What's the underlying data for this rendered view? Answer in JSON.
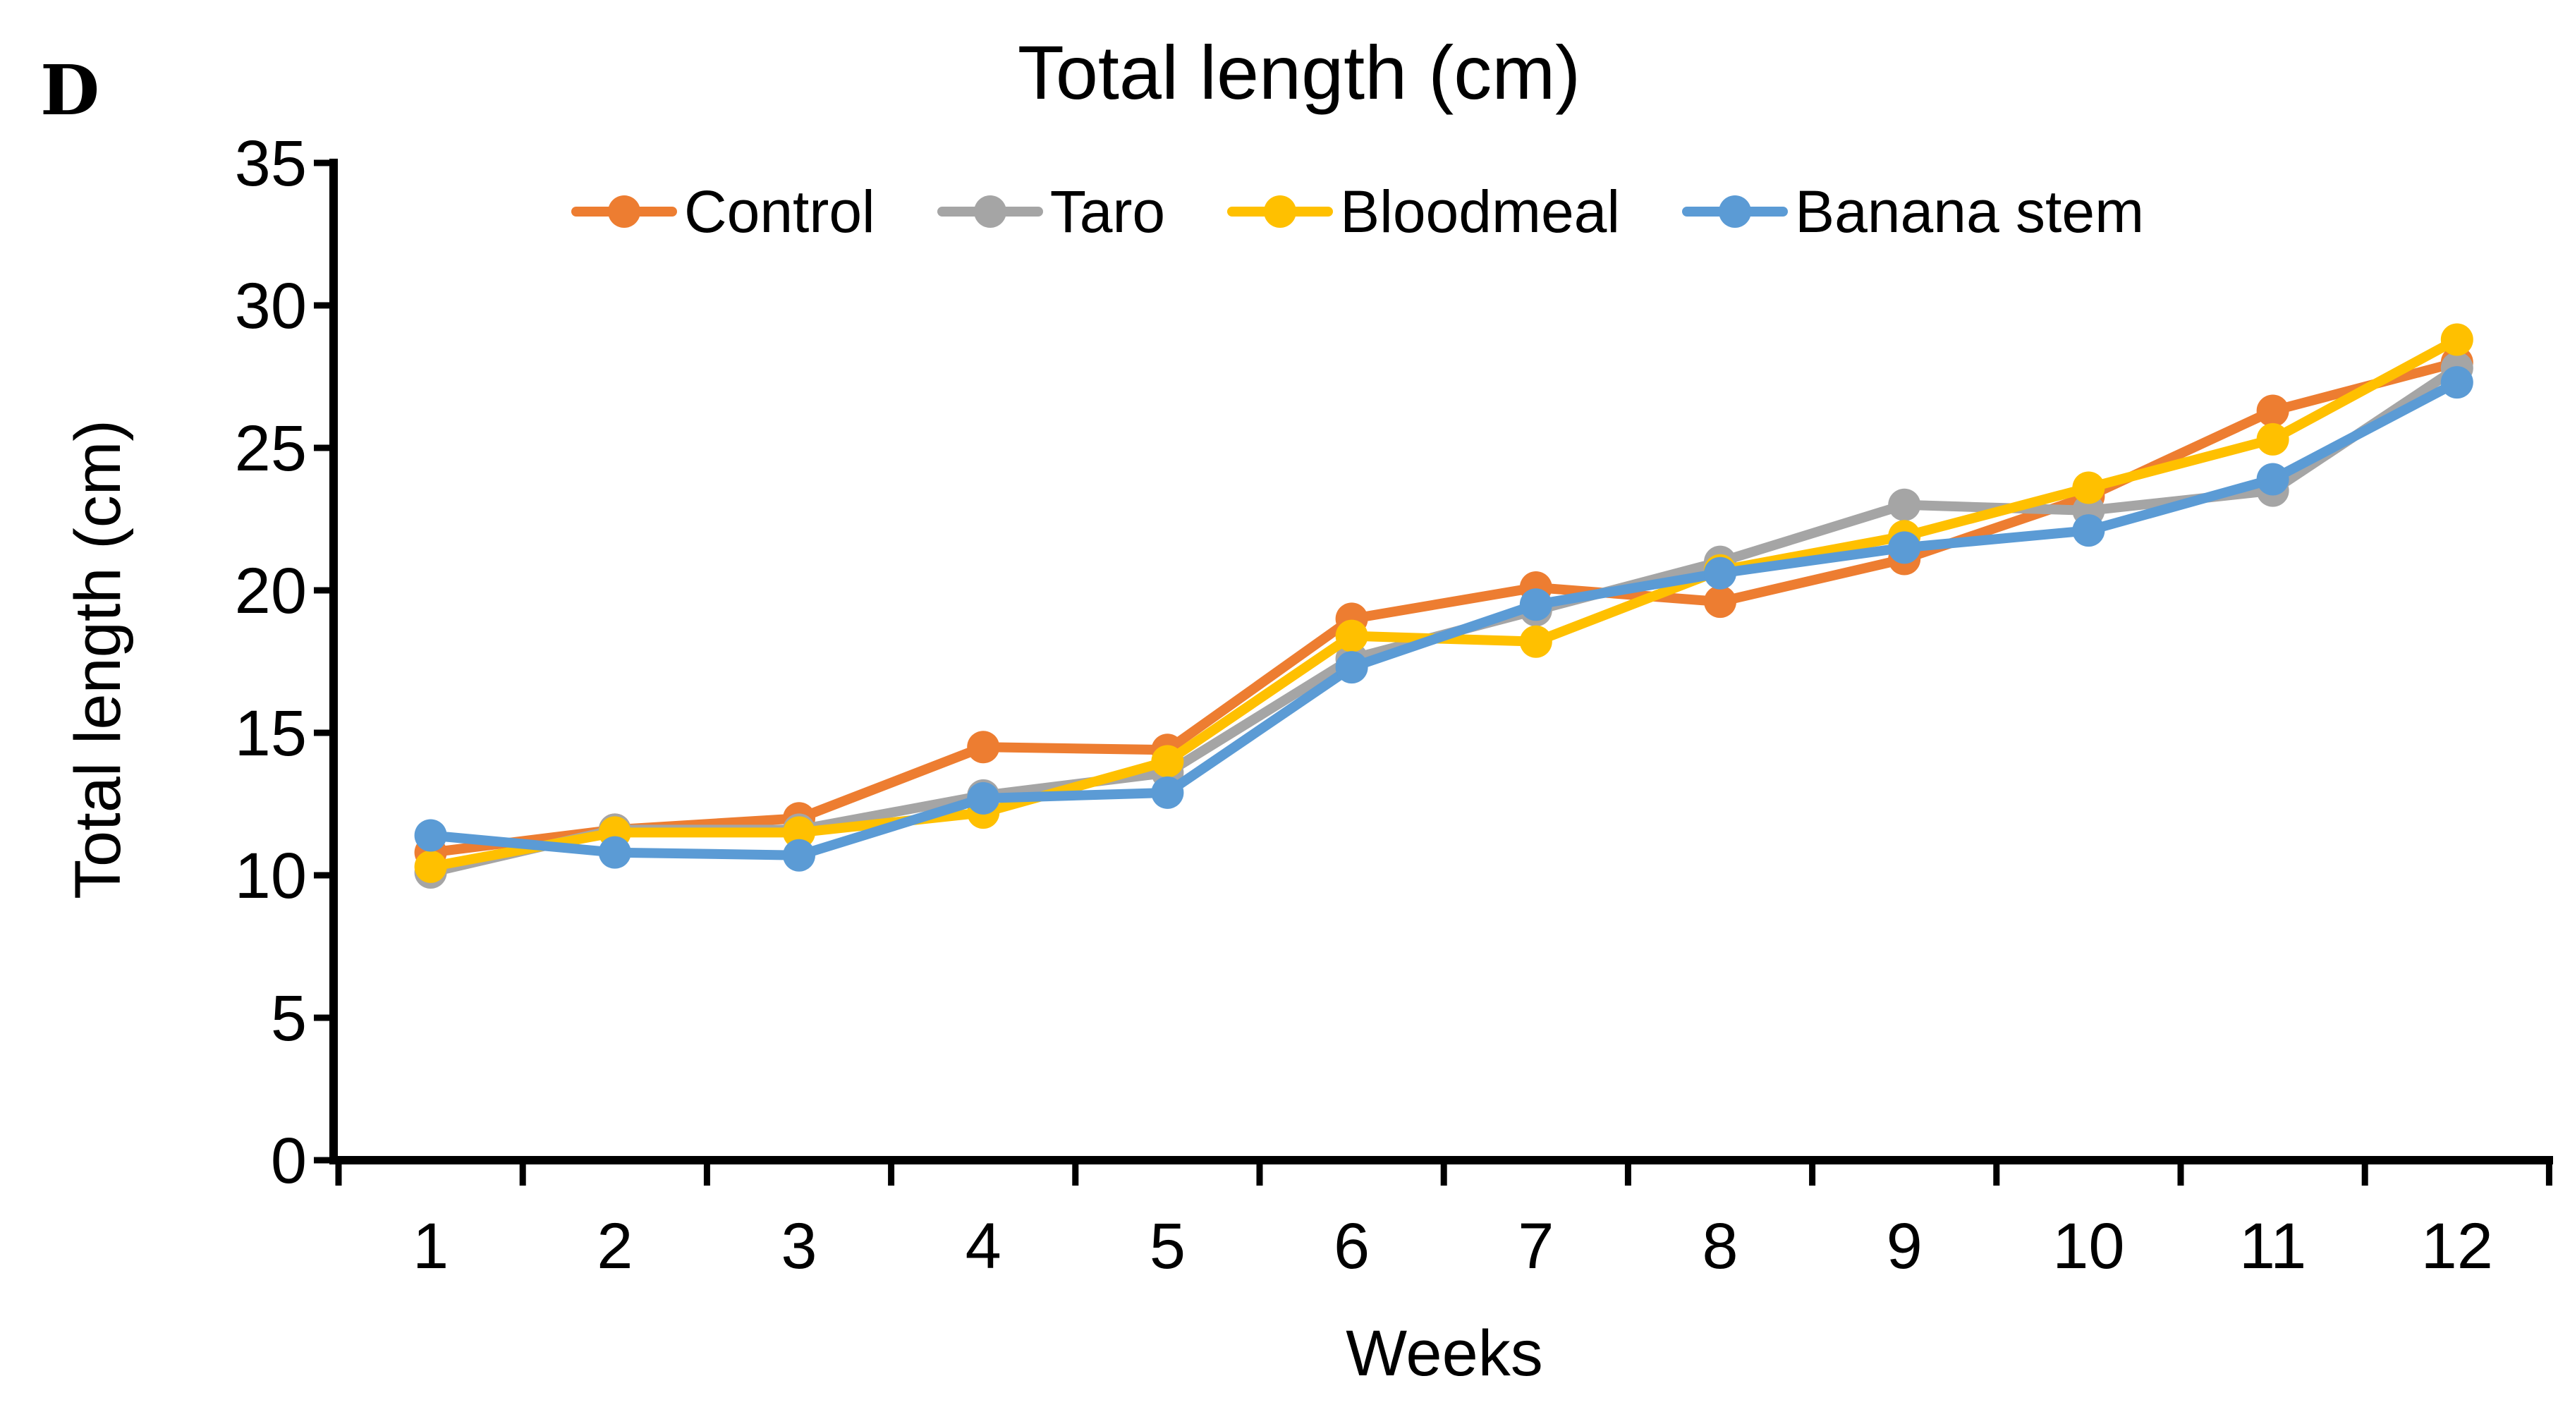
{
  "panel_label": "D",
  "chart_data": {
    "type": "line",
    "title": "Total length (cm)",
    "xlabel": "Weeks",
    "ylabel": "Total length (cm)",
    "categories": [
      "1",
      "2",
      "3",
      "4",
      "5",
      "6",
      "7",
      "8",
      "9",
      "10",
      "11",
      "12"
    ],
    "ylim": [
      0,
      35
    ],
    "ytick_step": 5,
    "y_tick_labels": [
      "0",
      "5",
      "10",
      "15",
      "20",
      "25",
      "30",
      "35"
    ],
    "grid": false,
    "legend_position": "top-center",
    "marker_style": "circle",
    "series": [
      {
        "name": "Control",
        "color": "#ED7D31",
        "values": [
          10.8,
          11.6,
          12.0,
          14.5,
          14.4,
          19.0,
          20.1,
          19.6,
          21.1,
          23.3,
          26.3,
          28.0
        ]
      },
      {
        "name": "Taro",
        "color": "#A5A5A5",
        "values": [
          10.1,
          11.6,
          11.6,
          12.8,
          13.6,
          17.6,
          19.3,
          21.0,
          23.0,
          22.8,
          23.5,
          27.8
        ]
      },
      {
        "name": "Bloodmeal",
        "color": "#FFC000",
        "values": [
          10.3,
          11.5,
          11.5,
          12.2,
          14.0,
          18.4,
          18.2,
          20.7,
          21.9,
          23.6,
          25.3,
          28.8
        ]
      },
      {
        "name": "Banana stem",
        "color": "#5B9BD5",
        "values": [
          11.4,
          10.8,
          10.7,
          12.7,
          12.9,
          17.3,
          19.5,
          20.6,
          21.5,
          22.1,
          23.9,
          27.3
        ]
      }
    ]
  }
}
